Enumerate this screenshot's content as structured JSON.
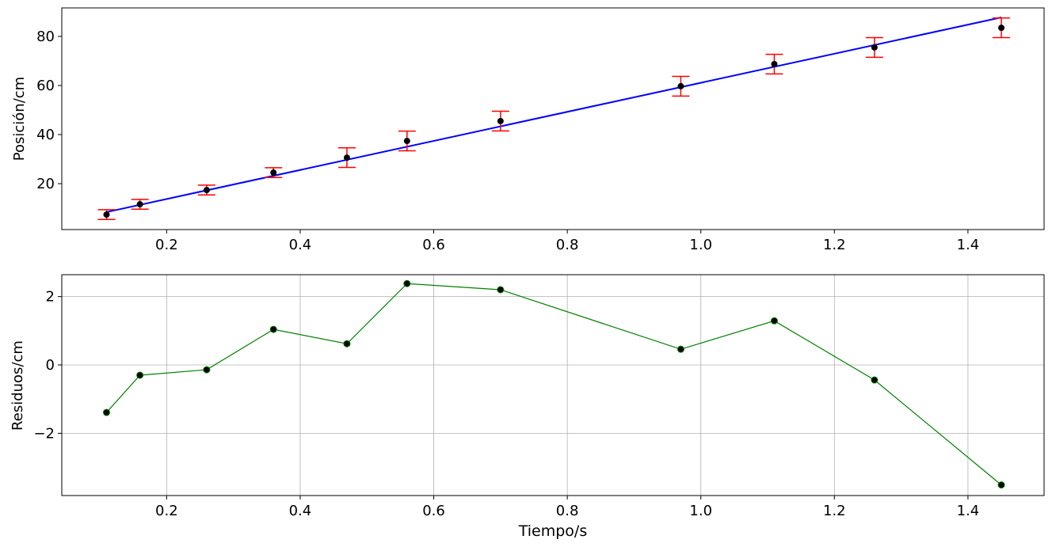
{
  "chart_data": [
    {
      "type": "scatter",
      "title": "",
      "xlabel": "",
      "ylabel": "Posición/cm",
      "xlim": [
        0.043,
        1.514
      ],
      "ylim": [
        1.3,
        91.6
      ],
      "grid": false,
      "xticks": [
        "0.2",
        "0.4",
        "0.6",
        "0.8",
        "1.0",
        "1.2",
        "1.4"
      ],
      "yticks": [
        "20",
        "40",
        "60",
        "80"
      ],
      "x": [
        0.11,
        0.16,
        0.26,
        0.36,
        0.47,
        0.56,
        0.7,
        0.97,
        1.11,
        1.26,
        1.45
      ],
      "y": [
        7.4,
        11.6,
        17.4,
        24.5,
        30.6,
        37.4,
        45.5,
        59.7,
        68.7,
        75.5,
        83.5
      ],
      "yerr": [
        2,
        2,
        2,
        2,
        4,
        4,
        4,
        4,
        4,
        4,
        4
      ],
      "fit": {
        "slope": 59.2,
        "intercept": 1.9,
        "color": "#0000ff"
      },
      "point_color": "#000000",
      "errorbar_color": "#ff0000"
    },
    {
      "type": "line",
      "title": "",
      "xlabel": "Tiempo/s",
      "ylabel": "Residuos/cm",
      "xlim": [
        0.043,
        1.514
      ],
      "ylim": [
        -3.82,
        2.64
      ],
      "grid": true,
      "xticks": [
        "0.2",
        "0.4",
        "0.6",
        "0.8",
        "1.0",
        "1.2",
        "1.4"
      ],
      "yticks": [
        "−2",
        "0",
        "2"
      ],
      "x": [
        0.11,
        0.16,
        0.26,
        0.36,
        0.47,
        0.56,
        0.7,
        0.97,
        1.11,
        1.26,
        1.45
      ],
      "y": [
        -1.39,
        -0.3,
        -0.14,
        1.04,
        0.62,
        2.38,
        2.2,
        0.46,
        1.29,
        -0.44,
        -3.51
      ],
      "line_color": "#008000",
      "marker_color": "#000000"
    }
  ]
}
